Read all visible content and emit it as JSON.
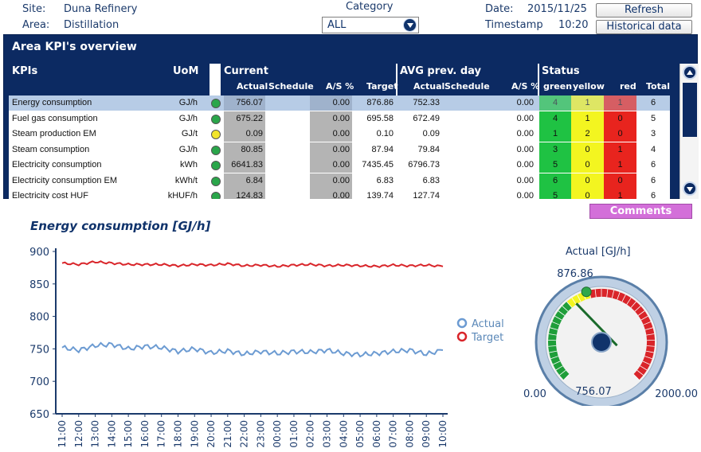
{
  "header": {
    "site_label": "Site:",
    "site_value": "Duna Refinery",
    "area_label": "Area:",
    "area_value": "Distillation",
    "category_label": "Category",
    "category_value": "ALL",
    "date_label": "Date:",
    "date_value": "2015/11/25",
    "timestamp_label": "Timestamp",
    "timestamp_value": "10:20",
    "refresh_label": "Refresh",
    "historical_label": "Historical data"
  },
  "panel": {
    "title": "Area KPI's overview",
    "headers": {
      "kpis": "KPIs",
      "uom": "UoM",
      "current": "Current",
      "avg": "AVG prev. day",
      "status": "Status",
      "actual": "Actual",
      "schedule": "Schedule",
      "as": "A/S %",
      "target": "Target",
      "green": "green",
      "yellow": "yellow",
      "red": "red",
      "total": "Total"
    },
    "rows": [
      {
        "kpi": "Energy consumption",
        "uom": "GJ/h",
        "light": "#2aa64a",
        "actual": "756.07",
        "schedule": "",
        "as": "0.00",
        "target": "876.86",
        "avg_actual": "752.33",
        "avg_schedule": "",
        "avg_as": "0.00",
        "green": "4",
        "yellow": "1",
        "red": "1",
        "total": "6"
      },
      {
        "kpi": "Fuel gas consumption",
        "uom": "GJ/h",
        "light": "#2aa64a",
        "actual": "675.22",
        "schedule": "",
        "as": "0.00",
        "target": "695.58",
        "avg_actual": "672.49",
        "avg_schedule": "",
        "avg_as": "0.00",
        "green": "4",
        "yellow": "1",
        "red": "0",
        "total": "5"
      },
      {
        "kpi": "Steam production EM",
        "uom": "GJ/t",
        "light": "#f2e52a",
        "actual": "0.09",
        "schedule": "",
        "as": "0.00",
        "target": "0.10",
        "avg_actual": "0.09",
        "avg_schedule": "",
        "avg_as": "0.00",
        "green": "1",
        "yellow": "2",
        "red": "0",
        "total": "3"
      },
      {
        "kpi": "Steam consumption",
        "uom": "GJ/h",
        "light": "#2aa64a",
        "actual": "80.85",
        "schedule": "",
        "as": "0.00",
        "target": "87.94",
        "avg_actual": "79.84",
        "avg_schedule": "",
        "avg_as": "0.00",
        "green": "3",
        "yellow": "0",
        "red": "1",
        "total": "4"
      },
      {
        "kpi": "Electricity consumption",
        "uom": "kWh",
        "light": "#2aa64a",
        "actual": "6641.83",
        "schedule": "",
        "as": "0.00",
        "target": "7435.45",
        "avg_actual": "6796.73",
        "avg_schedule": "",
        "avg_as": "0.00",
        "green": "5",
        "yellow": "0",
        "red": "1",
        "total": "6"
      },
      {
        "kpi": "Electricity consumption EM",
        "uom": "kWh/t",
        "light": "#2aa64a",
        "actual": "6.84",
        "schedule": "",
        "as": "0.00",
        "target": "6.83",
        "avg_actual": "6.83",
        "avg_schedule": "",
        "avg_as": "0.00",
        "green": "6",
        "yellow": "0",
        "red": "0",
        "total": "6"
      },
      {
        "kpi": "Electricity cost HUF",
        "uom": "kHUF/h",
        "light": "#2aa64a",
        "actual": "124.83",
        "schedule": "",
        "as": "0.00",
        "target": "139.74",
        "avg_actual": "127.74",
        "avg_schedule": "",
        "avg_as": "0.00",
        "green": "5",
        "yellow": "0",
        "red": "1",
        "total": "6"
      }
    ]
  },
  "comments_label": "Comments",
  "colors": {
    "navy": "#0c2a62",
    "status_green": "#1fc243",
    "status_yellow": "#f3f520",
    "status_red": "#e8241e",
    "actual_line": "#6c9bd2",
    "target_line": "#d9252a"
  },
  "chart_data": {
    "type": "line",
    "title": "Energy consumption [GJ/h]",
    "xlabel": "",
    "ylabel": "",
    "ylim": [
      650,
      900
    ],
    "yticks": [
      650,
      700,
      750,
      800,
      850,
      900
    ],
    "categories": [
      "11:00",
      "12:00",
      "13:00",
      "14:00",
      "15:00",
      "16:00",
      "17:00",
      "18:00",
      "19:00",
      "20:00",
      "21:00",
      "22:00",
      "23:00",
      "00:00",
      "01:00",
      "02:00",
      "03:00",
      "04:00",
      "05:00",
      "06:00",
      "07:00",
      "08:00",
      "09:00",
      "10:00"
    ],
    "legend_position": "right",
    "series": [
      {
        "name": "Actual",
        "color": "#6c9bd2",
        "values": [
          752,
          748,
          755,
          757,
          750,
          754,
          752,
          746,
          750,
          744,
          747,
          742,
          746,
          743,
          746,
          745,
          748,
          743,
          741,
          743,
          746,
          748,
          742,
          748
        ]
      },
      {
        "name": "Target",
        "color": "#d9252a",
        "values": [
          882,
          880,
          884,
          882,
          880,
          880,
          880,
          878,
          880,
          879,
          881,
          878,
          879,
          877,
          879,
          880,
          878,
          879,
          878,
          877,
          879,
          878,
          879,
          877
        ]
      }
    ]
  },
  "gauge": {
    "title": "Actual [GJ/h]",
    "min_label": "0.00",
    "max_label": "2000.00",
    "value_label": "756.07",
    "target_label": "876.86",
    "min": 0,
    "max": 2000,
    "value": 756.07,
    "target": 876.86,
    "bands": [
      {
        "from": 0,
        "to": 700,
        "color": "#1f9e3a"
      },
      {
        "from": 700,
        "to": 900,
        "color": "#f3f520"
      },
      {
        "from": 900,
        "to": 2000,
        "color": "#d9252a"
      }
    ]
  }
}
